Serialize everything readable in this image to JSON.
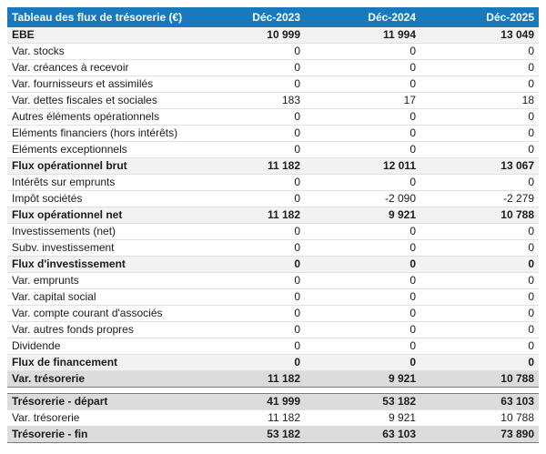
{
  "table": {
    "title": "Tableau des flux de trésorerie (€)",
    "columns": [
      "Déc-2023",
      "Déc-2024",
      "Déc-2025"
    ],
    "rows": [
      {
        "label": "EBE",
        "values": [
          "10 999",
          "11 994",
          "13 049"
        ],
        "style": "subtotal"
      },
      {
        "label": "Var. stocks",
        "values": [
          "0",
          "0",
          "0"
        ],
        "style": "normal"
      },
      {
        "label": "Var. créances à recevoir",
        "values": [
          "0",
          "0",
          "0"
        ],
        "style": "normal"
      },
      {
        "label": "Var. fournisseurs et assimilés",
        "values": [
          "0",
          "0",
          "0"
        ],
        "style": "normal"
      },
      {
        "label": "Var. dettes fiscales et sociales",
        "values": [
          "183",
          "17",
          "18"
        ],
        "style": "normal"
      },
      {
        "label": "Autres éléments opérationnels",
        "values": [
          "0",
          "0",
          "0"
        ],
        "style": "normal"
      },
      {
        "label": "Eléments financiers (hors intérêts)",
        "values": [
          "0",
          "0",
          "0"
        ],
        "style": "normal"
      },
      {
        "label": "Eléments exceptionnels",
        "values": [
          "0",
          "0",
          "0"
        ],
        "style": "normal"
      },
      {
        "label": "Flux opérationnel brut",
        "values": [
          "11 182",
          "12 011",
          "13 067"
        ],
        "style": "subtotal"
      },
      {
        "label": "Intérêts sur emprunts",
        "values": [
          "0",
          "0",
          "0"
        ],
        "style": "normal"
      },
      {
        "label": "Impôt sociétés",
        "values": [
          "0",
          "-2 090",
          "-2 279"
        ],
        "style": "normal"
      },
      {
        "label": "Flux opérationnel net",
        "values": [
          "11 182",
          "9 921",
          "10 788"
        ],
        "style": "subtotal"
      },
      {
        "label": "Investissements (net)",
        "values": [
          "0",
          "0",
          "0"
        ],
        "style": "normal"
      },
      {
        "label": "Subv. investissement",
        "values": [
          "0",
          "0",
          "0"
        ],
        "style": "normal"
      },
      {
        "label": "Flux d'investissement",
        "values": [
          "0",
          "0",
          "0"
        ],
        "style": "subtotal"
      },
      {
        "label": "Var. emprunts",
        "values": [
          "0",
          "0",
          "0"
        ],
        "style": "normal"
      },
      {
        "label": "Var. capital social",
        "values": [
          "0",
          "0",
          "0"
        ],
        "style": "normal"
      },
      {
        "label": "Var. compte courant d'associés",
        "values": [
          "0",
          "0",
          "0"
        ],
        "style": "normal"
      },
      {
        "label": "Var. autres fonds propres",
        "values": [
          "0",
          "0",
          "0"
        ],
        "style": "normal"
      },
      {
        "label": "Dividende",
        "values": [
          "0",
          "0",
          "0"
        ],
        "style": "normal"
      },
      {
        "label": "Flux de financement",
        "values": [
          "0",
          "0",
          "0"
        ],
        "style": "subtotal"
      },
      {
        "label": "Var. trésorerie",
        "values": [
          "11 182",
          "9 921",
          "10 788"
        ],
        "style": "total-mid"
      },
      {
        "type": "spacer"
      },
      {
        "label": "Trésorerie - départ",
        "values": [
          "41 999",
          "53 182",
          "63 103"
        ],
        "style": "total-top"
      },
      {
        "label": "Var. trésorerie",
        "values": [
          "11 182",
          "9 921",
          "10 788"
        ],
        "style": "normal"
      },
      {
        "label": "Trésorerie - fin",
        "values": [
          "53 182",
          "63 103",
          "73 890"
        ],
        "style": "total-bottom"
      }
    ]
  },
  "colors": {
    "header_bg": "#1879bd",
    "subtotal_row_bg": "#f2f2f2",
    "total_row_bg": "#dcdcdc",
    "divider_dark": "#7a7a7a",
    "divider_light": "#e1e1e1"
  }
}
